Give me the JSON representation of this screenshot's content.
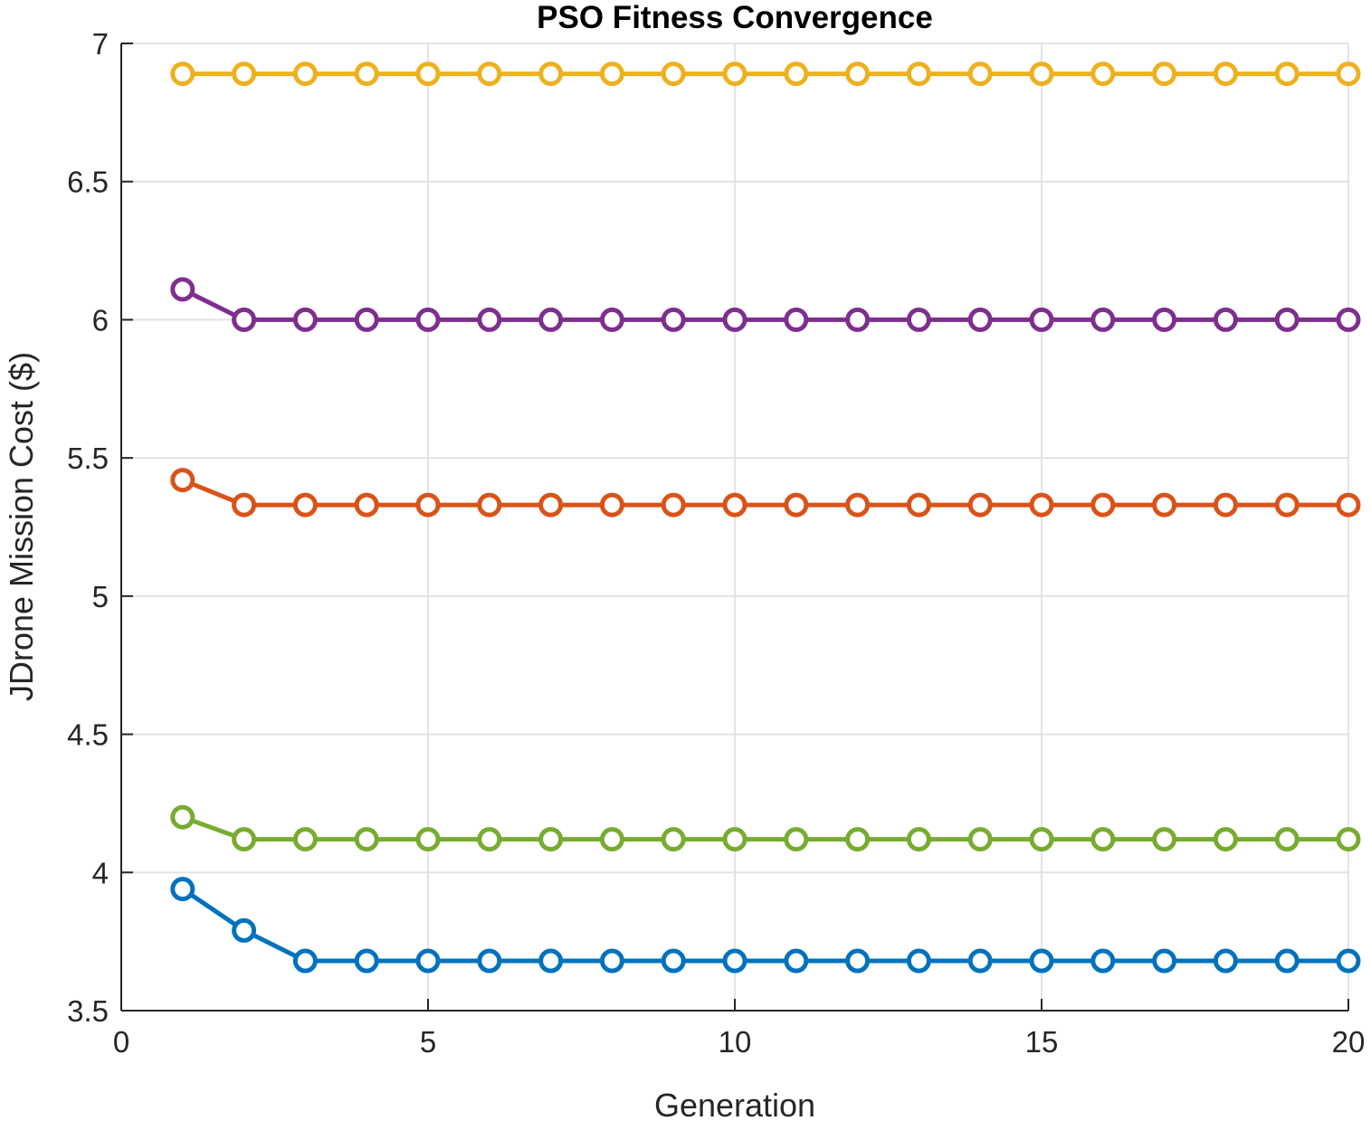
{
  "chart_data": {
    "type": "line",
    "title": "PSO Fitness Convergence",
    "xlabel": "Generation",
    "ylabel": "JDrone Mission Cost ($)",
    "xlim": [
      0,
      20
    ],
    "ylim": [
      3.5,
      7
    ],
    "xticks": [
      0,
      5,
      10,
      15,
      20
    ],
    "xtick_labels": [
      "0",
      "5",
      "10",
      "15",
      "20"
    ],
    "yticks": [
      3.5,
      4,
      4.5,
      5,
      5.5,
      6,
      6.5,
      7
    ],
    "ytick_labels": [
      "3.5",
      "4",
      "4.5",
      "5",
      "5.5",
      "6",
      "6.5",
      "7"
    ],
    "grid": true,
    "marker": "circle",
    "x": [
      1,
      2,
      3,
      4,
      5,
      6,
      7,
      8,
      9,
      10,
      11,
      12,
      13,
      14,
      15,
      16,
      17,
      18,
      19,
      20
    ],
    "series": [
      {
        "color": "#EDB120",
        "values": [
          6.89,
          6.89,
          6.89,
          6.89,
          6.89,
          6.89,
          6.89,
          6.89,
          6.89,
          6.89,
          6.89,
          6.89,
          6.89,
          6.89,
          6.89,
          6.89,
          6.89,
          6.89,
          6.89,
          6.89
        ]
      },
      {
        "color": "#7E2F8E",
        "values": [
          6.11,
          6.0,
          6.0,
          6.0,
          6.0,
          6.0,
          6.0,
          6.0,
          6.0,
          6.0,
          6.0,
          6.0,
          6.0,
          6.0,
          6.0,
          6.0,
          6.0,
          6.0,
          6.0,
          6.0
        ]
      },
      {
        "color": "#D95319",
        "values": [
          5.42,
          5.33,
          5.33,
          5.33,
          5.33,
          5.33,
          5.33,
          5.33,
          5.33,
          5.33,
          5.33,
          5.33,
          5.33,
          5.33,
          5.33,
          5.33,
          5.33,
          5.33,
          5.33,
          5.33
        ]
      },
      {
        "color": "#77AC30",
        "values": [
          4.2,
          4.12,
          4.12,
          4.12,
          4.12,
          4.12,
          4.12,
          4.12,
          4.12,
          4.12,
          4.12,
          4.12,
          4.12,
          4.12,
          4.12,
          4.12,
          4.12,
          4.12,
          4.12,
          4.12
        ]
      },
      {
        "color": "#0072BD",
        "values": [
          3.94,
          3.79,
          3.68,
          3.68,
          3.68,
          3.68,
          3.68,
          3.68,
          3.68,
          3.68,
          3.68,
          3.68,
          3.68,
          3.68,
          3.68,
          3.68,
          3.68,
          3.68,
          3.68,
          3.68
        ]
      }
    ]
  }
}
